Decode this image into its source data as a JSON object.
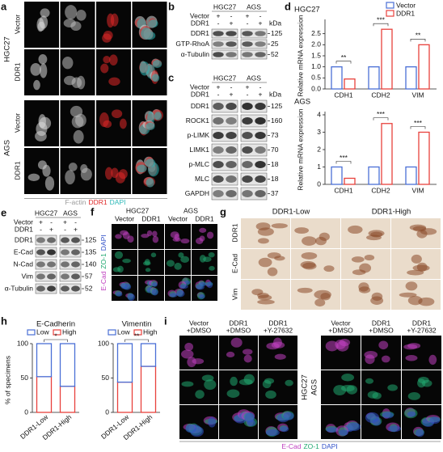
{
  "panels": {
    "a": {
      "label": "a",
      "cell_lines": [
        {
          "name": "HGC27",
          "conditions": [
            "Vector",
            "DDR1"
          ]
        },
        {
          "name": "AGS",
          "conditions": [
            "Vector",
            "DDR1"
          ]
        }
      ],
      "stain": [
        {
          "text": "F-actin",
          "color": "#9a9a9a"
        },
        {
          "text": "DDR1",
          "color": "#e02828"
        },
        {
          "text": "DAPI",
          "color": "#2cb8b8"
        }
      ]
    },
    "b": {
      "label": "b",
      "header": [
        "HGC27",
        "AGS"
      ],
      "rows": [
        {
          "name": "Vector",
          "signs": [
            "+",
            "-",
            "+",
            "-"
          ]
        },
        {
          "name": "DDR1",
          "signs": [
            "-",
            "+",
            "-",
            "+"
          ]
        }
      ],
      "unit": "kDa",
      "blots": [
        {
          "name": "DDR1",
          "kda": 125
        },
        {
          "name": "GTP-RhoA",
          "kda": 25
        },
        {
          "name": "α-Tubulin",
          "kda": 52
        }
      ]
    },
    "c": {
      "label": "c",
      "header": [
        "HGC27",
        "AGS"
      ],
      "rows": [
        {
          "name": "Vector",
          "signs": [
            "+",
            "-",
            "+",
            "-"
          ]
        },
        {
          "name": "DDR1",
          "signs": [
            "-",
            "+",
            "-",
            "+"
          ]
        }
      ],
      "unit": "kDa",
      "blots": [
        {
          "name": "DDR1",
          "kda": 125
        },
        {
          "name": "ROCK1",
          "kda": 160
        },
        {
          "name": "p-LIMK",
          "kda": 73
        },
        {
          "name": "LIMK1",
          "kda": 70
        },
        {
          "name": "p-MLC",
          "kda": 18
        },
        {
          "name": "MLC",
          "kda": 18
        },
        {
          "name": "GAPDH",
          "kda": 37
        }
      ]
    },
    "d": {
      "label": "d",
      "charts": [
        {
          "title": "HGC27",
          "ylabel": "Relative mRNA expression",
          "categories": [
            "CDH1",
            "CDH2",
            "VIM"
          ],
          "series": [
            {
              "name": "Vector",
              "color": "#4a6fd6",
              "values": [
                1.0,
                1.0,
                1.0
              ]
            },
            {
              "name": "DDR1",
              "color": "#e8413c",
              "values": [
                0.45,
                2.7,
                2.0
              ]
            }
          ],
          "ylim": [
            0,
            3
          ],
          "yticks": [
            {
              "value": 0,
              "label": "0.0"
            },
            {
              "value": 0.5,
              "label": "0.5"
            },
            {
              "value": 1,
              "label": "1.0"
            },
            {
              "value": 1.5,
              "label": "1.5"
            },
            {
              "value": 2,
              "label": "2.0"
            },
            {
              "value": 2.5,
              "label": "2.5"
            }
          ],
          "significance": [
            "**",
            "***",
            "**"
          ]
        },
        {
          "title": "AGS",
          "ylabel": "Relative mRNA expression",
          "categories": [
            "CDH1",
            "CDH2",
            "VIM"
          ],
          "series": [
            {
              "name": "Vector",
              "color": "#4a6fd6",
              "values": [
                1.0,
                1.0,
                1.0
              ]
            },
            {
              "name": "DDR1",
              "color": "#e8413c",
              "values": [
                0.35,
                3.5,
                3.0
              ]
            }
          ],
          "ylim": [
            0,
            4
          ],
          "yticks": [
            0,
            1,
            2,
            3,
            4
          ],
          "significance": [
            "***",
            "***",
            "***"
          ]
        }
      ]
    },
    "e": {
      "label": "e",
      "header": [
        "HGC27",
        "AGS"
      ],
      "rows": [
        {
          "name": "Vector",
          "signs": [
            "+",
            "-",
            "+",
            "-"
          ]
        },
        {
          "name": "DDR1",
          "signs": [
            "-",
            "+",
            "-",
            "+"
          ]
        }
      ],
      "blots": [
        {
          "name": "DDR1",
          "kda": 125
        },
        {
          "name": "E-Cad",
          "kda": 135
        },
        {
          "name": "N-Cad",
          "kda": 140
        },
        {
          "name": "Vim",
          "kda": 57
        },
        {
          "name": "α-Tubulin",
          "kda": 52
        }
      ]
    },
    "f": {
      "label": "f",
      "cell_lines": [
        {
          "name": "HGC27",
          "conditions": [
            "Vector",
            "DDR1"
          ]
        },
        {
          "name": "AGS",
          "conditions": [
            "Vector",
            "DDR1"
          ]
        }
      ],
      "stain": [
        {
          "text": "E-Cad",
          "color": "#c040c0"
        },
        {
          "text": "ZO-1",
          "color": "#20a870"
        },
        {
          "text": "DAPI",
          "color": "#3050c8"
        }
      ]
    },
    "g": {
      "label": "g",
      "groups": [
        "DDR1-Low",
        "DDR1-High"
      ],
      "rows": [
        "DDR1",
        "E-Cad",
        "Vim"
      ]
    },
    "h": {
      "label": "h",
      "ylabel": "% of specimens",
      "charts": [
        {
          "title": "E-Cadherin",
          "categories": [
            "DDR1-Low",
            "DDR1-High"
          ],
          "series": [
            {
              "name": "Low",
              "color": "#4a6fd6",
              "values": [
                48,
                62
              ]
            },
            {
              "name": "High",
              "color": "#e8413c",
              "values": [
                52,
                38
              ]
            }
          ],
          "ylim": [
            0,
            100
          ],
          "yticks": [
            0,
            50,
            100
          ],
          "significance": "*"
        },
        {
          "title": "Vimentin",
          "categories": [
            "DDR1-Low",
            "DDR1-High"
          ],
          "series": [
            {
              "name": "Low",
              "color": "#4a6fd6",
              "values": [
                56,
                33
              ]
            },
            {
              "name": "High",
              "color": "#e8413c",
              "values": [
                44,
                67
              ]
            }
          ],
          "ylim": [
            0,
            100
          ],
          "yticks": [
            0,
            50,
            100
          ],
          "significance": "**"
        }
      ]
    },
    "i": {
      "label": "i",
      "groups": [
        {
          "name": "HGC27",
          "columns": [
            [
              "Vector",
              "+DMSO"
            ],
            [
              "DDR1",
              "+DMSO"
            ],
            [
              "DDR1",
              "+Y-27632"
            ]
          ]
        },
        {
          "name": "AGS",
          "columns": [
            [
              "Vector",
              "+DMSO"
            ],
            [
              "DDR1",
              "+DMSO"
            ],
            [
              "DDR1",
              "+Y-27632"
            ]
          ]
        }
      ],
      "stain": [
        {
          "text": "E-Cad",
          "color": "#c040c0"
        },
        {
          "text": "ZO-1",
          "color": "#20a870"
        },
        {
          "text": "DAPI",
          "color": "#3050c8"
        }
      ]
    }
  }
}
